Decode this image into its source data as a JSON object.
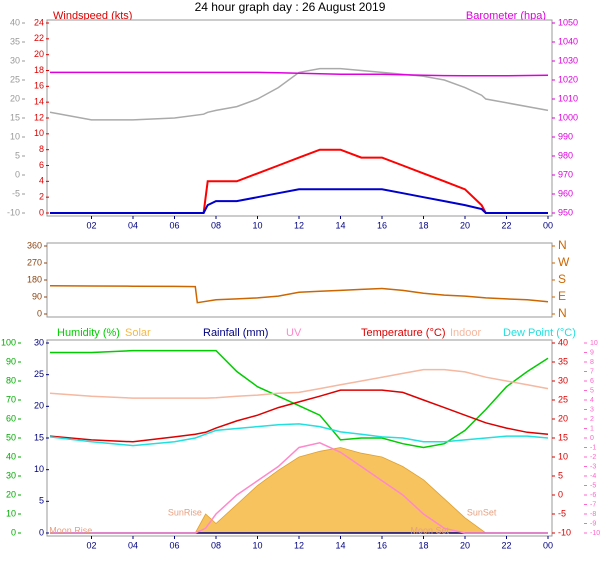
{
  "chart_data": [
    {
      "type": "line",
      "title": "24 hour graph day : 26 August 2019",
      "ylabel": "Windspeed (kts)",
      "y2label": "Barometer (hpa)",
      "x": [
        0,
        2,
        4,
        6,
        7.4,
        7.6,
        8,
        9,
        10,
        11,
        12,
        13,
        14,
        15,
        16,
        17,
        18,
        19,
        20,
        20.8,
        21,
        22,
        24
      ],
      "xlim": [
        0,
        24
      ],
      "xticks": [
        {
          "value": 2,
          "label": "02"
        },
        {
          "value": 4,
          "label": "04"
        },
        {
          "value": 6,
          "label": "06"
        },
        {
          "value": 8,
          "label": "08"
        },
        10,
        12,
        14,
        16,
        18,
        20,
        22,
        {
          "value": 24,
          "label": "00"
        }
      ],
      "ylim": [
        0,
        24
      ],
      "yticks": [
        0,
        2,
        4,
        6,
        8,
        10,
        12,
        14,
        16,
        18,
        20,
        22,
        24
      ],
      "y2lim": [
        950,
        1050
      ],
      "y2ticks": [
        950,
        960,
        970,
        980,
        990,
        1000,
        1010,
        1020,
        1030,
        1040,
        1050
      ],
      "y3lim": [
        -10,
        40
      ],
      "y3ticks": [
        -10,
        -5,
        0,
        5,
        10,
        15,
        20,
        25,
        30,
        35,
        40
      ],
      "series": [
        {
          "color": "#aaaaaa",
          "axis": "y3",
          "values": [
            16.5,
            14.5,
            14.5,
            15,
            16,
            16.5,
            17,
            18,
            20,
            23,
            27,
            28,
            28,
            27.5,
            27,
            26.5,
            26,
            25,
            23,
            21,
            20,
            19,
            17
          ]
        },
        {
          "color": "#dd00dd",
          "axis": "y2",
          "values": [
            1024,
            1024,
            1024,
            1024,
            1024,
            1024,
            1024,
            1024,
            1024,
            1023.8,
            1023.5,
            1023.3,
            1023,
            1023,
            1023,
            1022.8,
            1022.5,
            1022.3,
            1022.2,
            1022.2,
            1022.2,
            1022.2,
            1022.5
          ]
        },
        {
          "color": "#ff0000",
          "axis": "y",
          "values": [
            0,
            0,
            0,
            0,
            0,
            4,
            4,
            4,
            5,
            6,
            7,
            8,
            8,
            7,
            7,
            6,
            5,
            4,
            3,
            1,
            0,
            0,
            0
          ]
        },
        {
          "color": "#0000cc",
          "axis": "y",
          "values": [
            0,
            0,
            0,
            0,
            0,
            1,
            1.5,
            1.5,
            2,
            2.5,
            3,
            3,
            3,
            3,
            3,
            2.5,
            2,
            1.5,
            1,
            0.5,
            0,
            0,
            0
          ]
        }
      ]
    },
    {
      "type": "line",
      "x": [
        0,
        2,
        4,
        6,
        7,
        7.1,
        8,
        9,
        10,
        11,
        12,
        13,
        14,
        15,
        16,
        17,
        18,
        19,
        20,
        21,
        22,
        23,
        24
      ],
      "xlim": [
        0,
        24
      ],
      "ylim": [
        0,
        360
      ],
      "yticks": [
        0,
        90,
        180,
        270,
        360
      ],
      "y2lim": [
        0,
        360
      ],
      "y2ticks": [
        {
          "value": 0,
          "label": "N"
        },
        {
          "value": 90,
          "label": "E"
        },
        {
          "value": 180,
          "label": "S"
        },
        {
          "value": 270,
          "label": "W"
        },
        {
          "value": 360,
          "label": "N"
        }
      ],
      "series": [
        {
          "color": "#cc6600",
          "axis": "y",
          "values": [
            150,
            148,
            147,
            146,
            145,
            60,
            75,
            80,
            85,
            95,
            115,
            120,
            125,
            130,
            135,
            125,
            110,
            100,
            95,
            85,
            80,
            75,
            65
          ]
        }
      ]
    },
    {
      "type": "line",
      "x": [
        0,
        2,
        4,
        6,
        7,
        7.5,
        8,
        9,
        10,
        11,
        12,
        13,
        14,
        15,
        16,
        17,
        18,
        19,
        20,
        21,
        22,
        23,
        24
      ],
      "xlim": [
        0,
        24
      ],
      "xticks": [
        {
          "value": 2,
          "label": "02"
        },
        {
          "value": 4,
          "label": "04"
        },
        {
          "value": 6,
          "label": "06"
        },
        {
          "value": 8,
          "label": "08"
        },
        10,
        12,
        14,
        16,
        18,
        20,
        22,
        {
          "value": 24,
          "label": "00"
        }
      ],
      "ylim": [
        0,
        100
      ],
      "yticks": [
        0,
        10,
        20,
        30,
        40,
        50,
        60,
        70,
        80,
        90,
        100
      ],
      "y2lim": [
        -10,
        40
      ],
      "y2ticks": [
        -10,
        -5,
        0,
        5,
        10,
        15,
        20,
        25,
        30,
        35,
        40
      ],
      "y3lim": [
        0,
        30
      ],
      "y3ticks": [
        0,
        5,
        10,
        15,
        20,
        25,
        30
      ],
      "y4lim": [
        -10,
        10
      ],
      "y4ticks": [
        -10,
        -9,
        -8,
        -7,
        -6,
        -5,
        -4,
        -3,
        -2,
        -1,
        0,
        1,
        2,
        3,
        4,
        5,
        6,
        7,
        8,
        9,
        10
      ],
      "series": [
        {
          "name": "Humidity (%)",
          "color": "#00cc00",
          "axis": "y",
          "values": [
            95,
            95,
            96,
            96,
            96,
            96,
            96,
            85,
            77,
            72,
            67,
            62,
            49,
            50,
            50,
            47,
            45,
            47,
            54,
            65,
            77,
            85,
            92
          ]
        },
        {
          "name": "Solar",
          "color": "#f5b942",
          "axis": "y",
          "style": "area",
          "values": [
            0,
            0,
            0,
            0,
            0,
            10,
            5,
            15,
            25,
            33,
            40,
            43,
            45,
            42,
            40,
            35,
            28,
            18,
            8,
            0,
            0,
            0,
            0
          ]
        },
        {
          "name": "Rainfall (mm)",
          "color": "#000080",
          "axis": "y3",
          "values": [
            0,
            0,
            0,
            0,
            0,
            0,
            0,
            0,
            0,
            0,
            0,
            0,
            0,
            0,
            0,
            0,
            0,
            0,
            0,
            0,
            0,
            0,
            0
          ]
        },
        {
          "name": "UV",
          "color": "#ff88cc",
          "axis": "y4",
          "values": [
            -10,
            -10,
            -10,
            -10,
            -10,
            -9.5,
            -8,
            -6,
            -4.5,
            -3,
            -1,
            -0.5,
            -1.5,
            -3,
            -4.5,
            -6,
            -8,
            -9.5,
            -10,
            -10,
            -10,
            -10,
            -10
          ]
        },
        {
          "name": "Temperature (°C)",
          "color": "#dd0000",
          "axis": "y2",
          "values": [
            15.5,
            14.5,
            14,
            15.3,
            16,
            16.5,
            17.6,
            19.5,
            21,
            23,
            24.5,
            26,
            27.6,
            27.6,
            27.6,
            27,
            25,
            23,
            21,
            19,
            17.6,
            16.5,
            16
          ]
        },
        {
          "name": "Indoor",
          "color": "#f5b8a0",
          "axis": "y2",
          "values": [
            26.8,
            26,
            25.5,
            25.5,
            25.5,
            25.5,
            25.6,
            26,
            26.3,
            26.8,
            27,
            28,
            29,
            30,
            31,
            32,
            33,
            33,
            32.4,
            31,
            30,
            29,
            28
          ]
        },
        {
          "name": "Dew Point (°C)",
          "color": "#22e0e0",
          "axis": "y2",
          "values": [
            15.3,
            14,
            13,
            14,
            15,
            16,
            17,
            17.5,
            18,
            18.5,
            18.7,
            18,
            16.6,
            16,
            15.3,
            15,
            14,
            14,
            14.5,
            15,
            15.5,
            15.5,
            15
          ]
        }
      ],
      "annotations": [
        {
          "text": "Moon Rise",
          "x": 1
        },
        {
          "text": "SunRise",
          "x": 6.5
        },
        {
          "text": "Moon Set",
          "x": 18.3
        },
        {
          "text": "SunSet",
          "x": 20.8
        }
      ]
    }
  ]
}
